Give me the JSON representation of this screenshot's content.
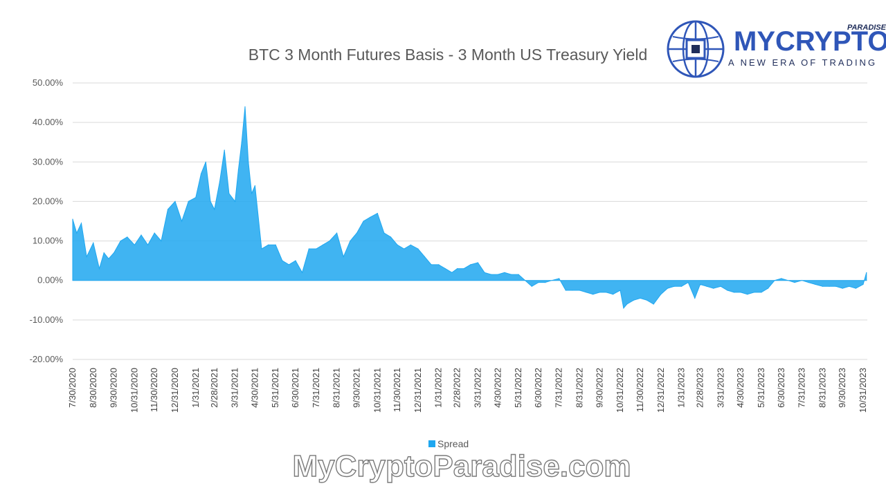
{
  "chart_data": {
    "type": "area",
    "title": "BTC 3 Month Futures Basis - 3 Month US Treasury Yield",
    "xlabel": "",
    "ylabel": "",
    "ylim": [
      -20,
      50
    ],
    "y_ticks": [
      "50.00%",
      "40.00%",
      "30.00%",
      "20.00%",
      "10.00%",
      "0.00%",
      "-10.00%",
      "-20.00%"
    ],
    "x_ticks": [
      "7/30/2020",
      "8/30/2020",
      "9/30/2020",
      "10/31/2020",
      "11/30/2020",
      "12/31/2020",
      "1/31/2021",
      "2/28/2021",
      "3/31/2021",
      "4/30/2021",
      "5/31/2021",
      "6/30/2021",
      "7/31/2021",
      "8/31/2021",
      "9/30/2021",
      "10/31/2021",
      "11/30/2021",
      "12/31/2021",
      "1/31/2022",
      "2/28/2022",
      "3/31/2022",
      "4/30/2022",
      "5/31/2022",
      "6/30/2022",
      "7/31/2022",
      "8/31/2022",
      "9/30/2022",
      "10/31/2022",
      "11/30/2022",
      "12/31/2022",
      "1/31/2023",
      "2/28/2023",
      "3/31/2023",
      "4/30/2023",
      "5/31/2023",
      "6/30/2023",
      "7/31/2023",
      "8/31/2023",
      "9/30/2023",
      "10/31/2023"
    ],
    "grid": true,
    "legend_position": "bottom",
    "series": [
      {
        "name": "Spread",
        "color": "#1fa7f0",
        "x": [
          "7/30/2020",
          "8/5/2020",
          "8/12/2020",
          "8/20/2020",
          "8/30/2020",
          "9/8/2020",
          "9/15/2020",
          "9/22/2020",
          "9/30/2020",
          "10/10/2020",
          "10/20/2020",
          "10/31/2020",
          "11/10/2020",
          "11/20/2020",
          "11/30/2020",
          "12/10/2020",
          "12/20/2020",
          "12/31/2020",
          "1/10/2021",
          "1/20/2021",
          "1/31/2021",
          "2/8/2021",
          "2/15/2021",
          "2/22/2021",
          "2/28/2021",
          "3/8/2021",
          "3/15/2021",
          "3/22/2021",
          "3/31/2021",
          "4/5/2021",
          "4/10/2021",
          "4/15/2021",
          "4/20/2021",
          "4/25/2021",
          "4/30/2021",
          "5/10/2021",
          "5/20/2021",
          "5/31/2021",
          "6/10/2021",
          "6/20/2021",
          "6/30/2021",
          "7/10/2021",
          "7/20/2021",
          "7/31/2021",
          "8/10/2021",
          "8/20/2021",
          "8/31/2021",
          "9/10/2021",
          "9/20/2021",
          "9/30/2021",
          "10/10/2021",
          "10/20/2021",
          "10/31/2021",
          "11/10/2021",
          "11/20/2021",
          "11/30/2021",
          "12/10/2021",
          "12/20/2021",
          "12/31/2021",
          "1/10/2022",
          "1/20/2022",
          "1/31/2022",
          "2/10/2022",
          "2/20/2022",
          "2/28/2022",
          "3/10/2022",
          "3/20/2022",
          "3/31/2022",
          "4/10/2022",
          "4/20/2022",
          "4/30/2022",
          "5/10/2022",
          "5/20/2022",
          "5/31/2022",
          "6/10/2022",
          "6/20/2022",
          "6/30/2022",
          "7/10/2022",
          "7/20/2022",
          "7/31/2022",
          "8/10/2022",
          "8/20/2022",
          "8/31/2022",
          "9/10/2022",
          "9/20/2022",
          "9/30/2022",
          "10/10/2022",
          "10/20/2022",
          "10/31/2022",
          "11/5/2022",
          "11/10/2022",
          "11/20/2022",
          "11/30/2022",
          "12/10/2022",
          "12/20/2022",
          "12/31/2022",
          "1/10/2023",
          "1/20/2023",
          "1/31/2023",
          "2/10/2023",
          "2/20/2023",
          "2/28/2023",
          "3/10/2023",
          "3/20/2023",
          "3/31/2023",
          "4/10/2023",
          "4/20/2023",
          "4/30/2023",
          "5/10/2023",
          "5/20/2023",
          "5/31/2023",
          "6/10/2023",
          "6/20/2023",
          "6/30/2023",
          "7/10/2023",
          "7/20/2023",
          "7/31/2023",
          "8/10/2023",
          "8/20/2023",
          "8/31/2023",
          "9/10/2023",
          "9/20/2023",
          "9/30/2023",
          "10/10/2023",
          "10/20/2023",
          "10/31/2023",
          "11/5/2023"
        ],
        "values": [
          15.5,
          12,
          14.5,
          6,
          9.5,
          3,
          7,
          5.5,
          7,
          10,
          11,
          9,
          11.5,
          9,
          12,
          10,
          18,
          20,
          15,
          20,
          21,
          27,
          30,
          20,
          18,
          25,
          33,
          22,
          20,
          28,
          35,
          44,
          30,
          22,
          24,
          8,
          9,
          9,
          5,
          4,
          5,
          2,
          8,
          8,
          9,
          10,
          12,
          6,
          10,
          12,
          15,
          16,
          17,
          12,
          11,
          9,
          8,
          9,
          8,
          6,
          4,
          4,
          3,
          2,
          3,
          3,
          4,
          4.5,
          2,
          1.5,
          1.5,
          2,
          1.5,
          1.5,
          0,
          -1.5,
          -0.5,
          -0.5,
          0,
          0.5,
          -2.5,
          -2.5,
          -2.5,
          -3,
          -3.5,
          -3,
          -3,
          -3.5,
          -2.5,
          -7,
          -6,
          -5,
          -4.5,
          -5,
          -6,
          -3.5,
          -2,
          -1.5,
          -1.5,
          -0.5,
          -4.5,
          -1,
          -1.5,
          -2,
          -1.5,
          -2.5,
          -3,
          -3,
          -3.5,
          -3,
          -3,
          -2,
          0,
          0.5,
          0,
          -0.5,
          0,
          -0.5,
          -1,
          -1.5,
          -1.5,
          -1.5,
          -2,
          -1.5,
          -2,
          -1,
          2
        ]
      }
    ]
  },
  "logo": {
    "wordmark": "MYCRYPTO",
    "subword": "PARADISE",
    "tagline": "A NEW ERA OF TRADING"
  },
  "watermark": "MyCryptoParadise.com"
}
